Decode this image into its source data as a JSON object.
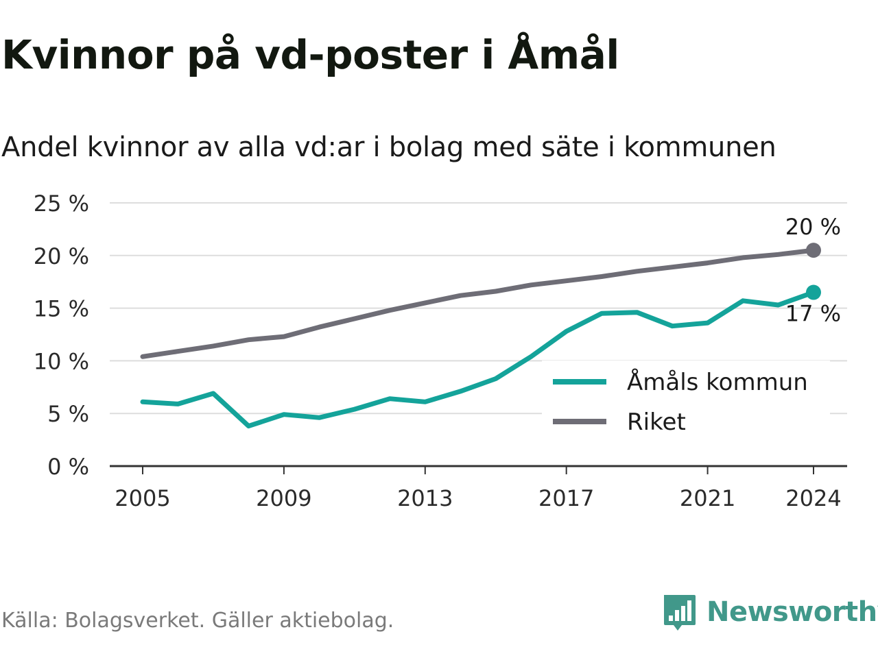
{
  "title": "Kvinnor på vd-poster i Åmål",
  "subtitle": "Andel kvinnor av alla vd:ar i bolag med säte i kommunen",
  "source": "Källa: Bolagsverket. Gäller aktiebolag.",
  "brand": "Newsworthy",
  "colors": {
    "amal": "#14a39a",
    "riket": "#6e6d76",
    "grid": "#dddddd",
    "axis": "#333333",
    "brand": "#41988a"
  },
  "chart_data": {
    "type": "line",
    "title": "Kvinnor på vd-poster i Åmål",
    "subtitle": "Andel kvinnor av alla vd:ar i bolag med säte i kommunen",
    "ylim": [
      0,
      25
    ],
    "y_ticks": [
      0,
      5,
      10,
      15,
      20,
      25
    ],
    "y_tick_labels": [
      "0 %",
      "5 %",
      "10 %",
      "15 %",
      "20 %",
      "25 %"
    ],
    "x_ticks": [
      2005,
      2009,
      2013,
      2017,
      2021,
      2024
    ],
    "x_tick_labels": [
      "2005",
      "2009",
      "2013",
      "2017",
      "2021",
      "2024"
    ],
    "x": [
      2005,
      2006,
      2007,
      2008,
      2009,
      2010,
      2011,
      2012,
      2013,
      2014,
      2015,
      2016,
      2017,
      2018,
      2019,
      2020,
      2021,
      2022,
      2023,
      2024
    ],
    "series": [
      {
        "name": "Åmåls kommun",
        "color": "#14a39a",
        "values": [
          6.1,
          5.9,
          6.9,
          3.8,
          4.9,
          4.6,
          5.4,
          6.4,
          6.1,
          7.1,
          8.3,
          10.4,
          12.8,
          14.5,
          14.6,
          13.3,
          13.6,
          15.7,
          15.3,
          16.5
        ],
        "end_label": "17 %"
      },
      {
        "name": "Riket",
        "color": "#6e6d76",
        "values": [
          10.4,
          10.9,
          11.4,
          12.0,
          12.3,
          13.2,
          14.0,
          14.8,
          15.5,
          16.2,
          16.6,
          17.2,
          17.6,
          18.0,
          18.5,
          18.9,
          19.3,
          19.8,
          20.1,
          20.5
        ],
        "end_label": "20 %"
      }
    ],
    "legend": {
      "position": "right",
      "entries": [
        "Åmåls kommun",
        "Riket"
      ]
    },
    "grid": true
  }
}
